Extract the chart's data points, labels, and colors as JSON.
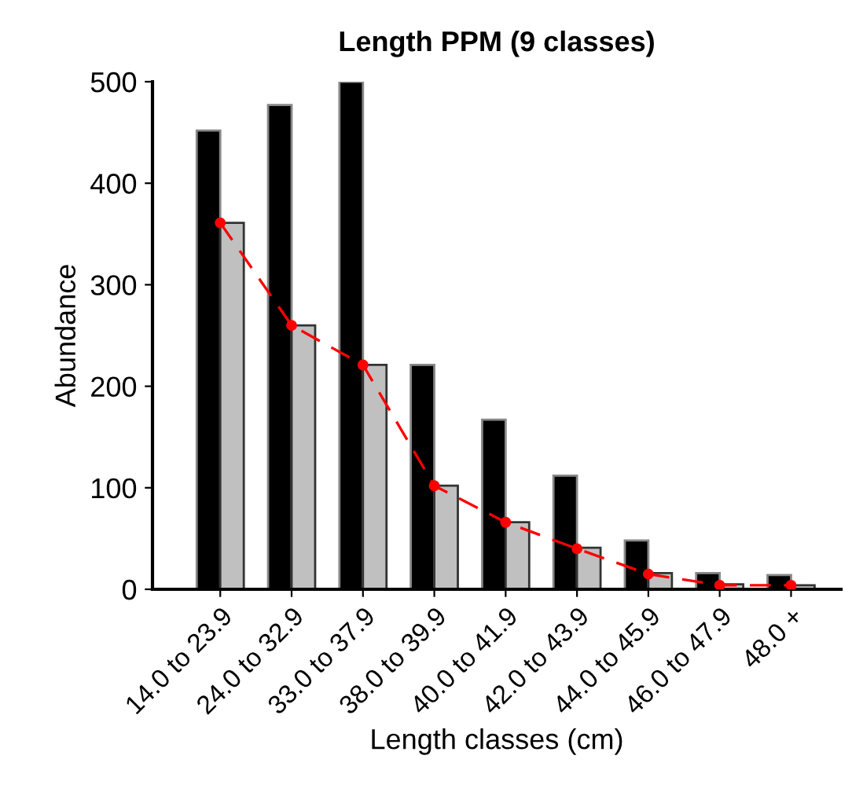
{
  "chart_data": {
    "type": "bar",
    "title": "Length PPM (9 classes)",
    "xlabel": "Length classes (cm)",
    "ylabel": "Abundance",
    "categories": [
      "14.0 to 23.9",
      "24.0 to 32.9",
      "33.0 to 37.9",
      "38.0 to 39.9",
      "40.0 to 41.9",
      "42.0 to 43.9",
      "44.0 to 45.9",
      "46.0 to 47.9",
      "48.0 +"
    ],
    "series": [
      {
        "color": "#000000",
        "values": [
          452,
          477,
          500,
          221,
          167,
          112,
          48,
          16,
          14
        ]
      },
      {
        "color": "#c0c0c0",
        "values": [
          361,
          260,
          221,
          102,
          66,
          41,
          16,
          5,
          4
        ]
      },
      {
        "type": "line",
        "color": "#ff0000",
        "marker": "circle",
        "line_style": "dashed",
        "values": [
          361,
          260,
          221,
          102,
          66,
          40,
          15,
          4,
          4
        ]
      }
    ],
    "ylim": [
      0,
      500
    ],
    "yticks": [
      0,
      100,
      200,
      300,
      400,
      500
    ],
    "grid": false,
    "legend": false
  }
}
